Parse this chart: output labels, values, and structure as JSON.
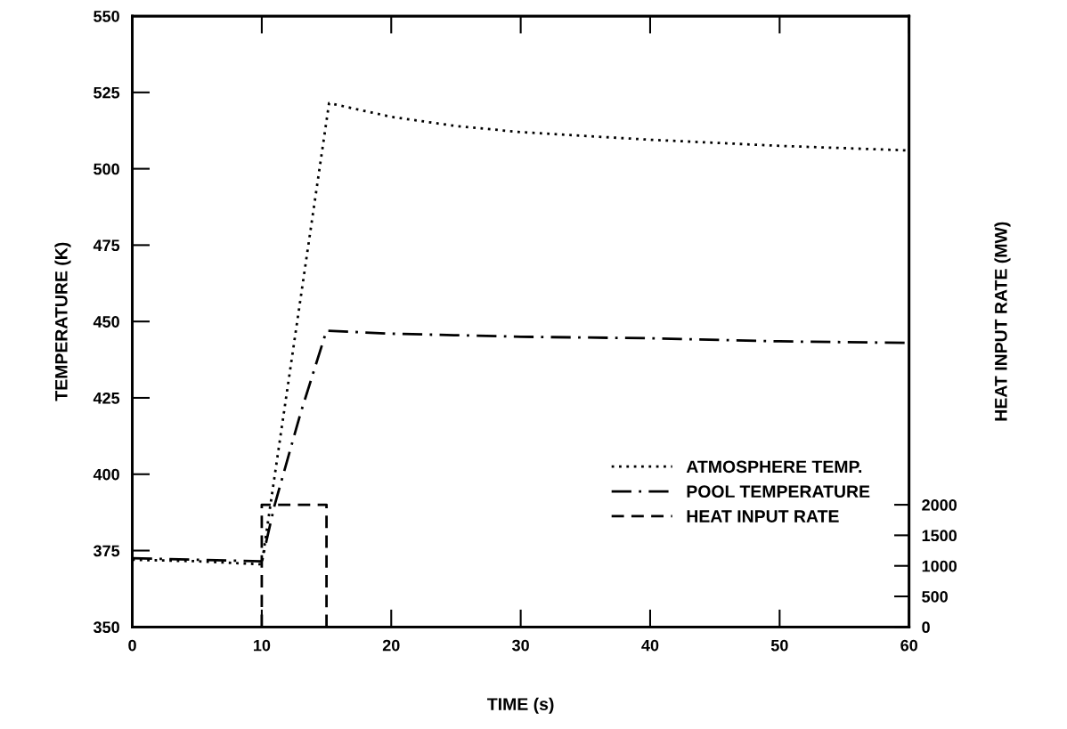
{
  "chart_data": {
    "type": "line",
    "xlabel": "TIME (s)",
    "ylabel": "TEMPERATURE (K)",
    "y2label": "HEAT INPUT RATE (MW)",
    "xlim": [
      0,
      60
    ],
    "xticks": [
      0,
      10,
      20,
      30,
      40,
      50,
      60
    ],
    "ylim": [
      350,
      550
    ],
    "yticks": [
      350,
      375,
      400,
      425,
      450,
      475,
      500,
      525,
      550
    ],
    "y2lim": [
      0,
      10000
    ],
    "y2ticks": [
      0,
      500,
      1000,
      1500,
      2000
    ],
    "legend": "bottom right",
    "grid": false,
    "series": [
      {
        "name": "ATMOSPHERE TEMP.",
        "color": "#000000",
        "line_style": "dotted",
        "x": [
          0,
          5,
          10,
          15.2,
          20,
          25,
          30,
          40,
          50,
          60
        ],
        "values": [
          372,
          371.5,
          370.5,
          521.5,
          517,
          514,
          512,
          509.5,
          507.5,
          506
        ]
      },
      {
        "name": "POOL TEMPERATURE",
        "color": "#000000",
        "line_style": "dashdot",
        "x": [
          0,
          5,
          10,
          11,
          13,
          15,
          20,
          30,
          40,
          50,
          60
        ],
        "values": [
          372.5,
          372,
          371.5,
          390,
          420,
          447,
          446,
          445,
          444.5,
          443.5,
          443
        ]
      },
      {
        "name": "HEAT INPUT RATE",
        "color": "#000000",
        "line_style": "dashed",
        "axis": "y2",
        "x": [
          10,
          10,
          15,
          15
        ],
        "values": [
          0,
          2000,
          2000,
          0
        ]
      }
    ]
  }
}
